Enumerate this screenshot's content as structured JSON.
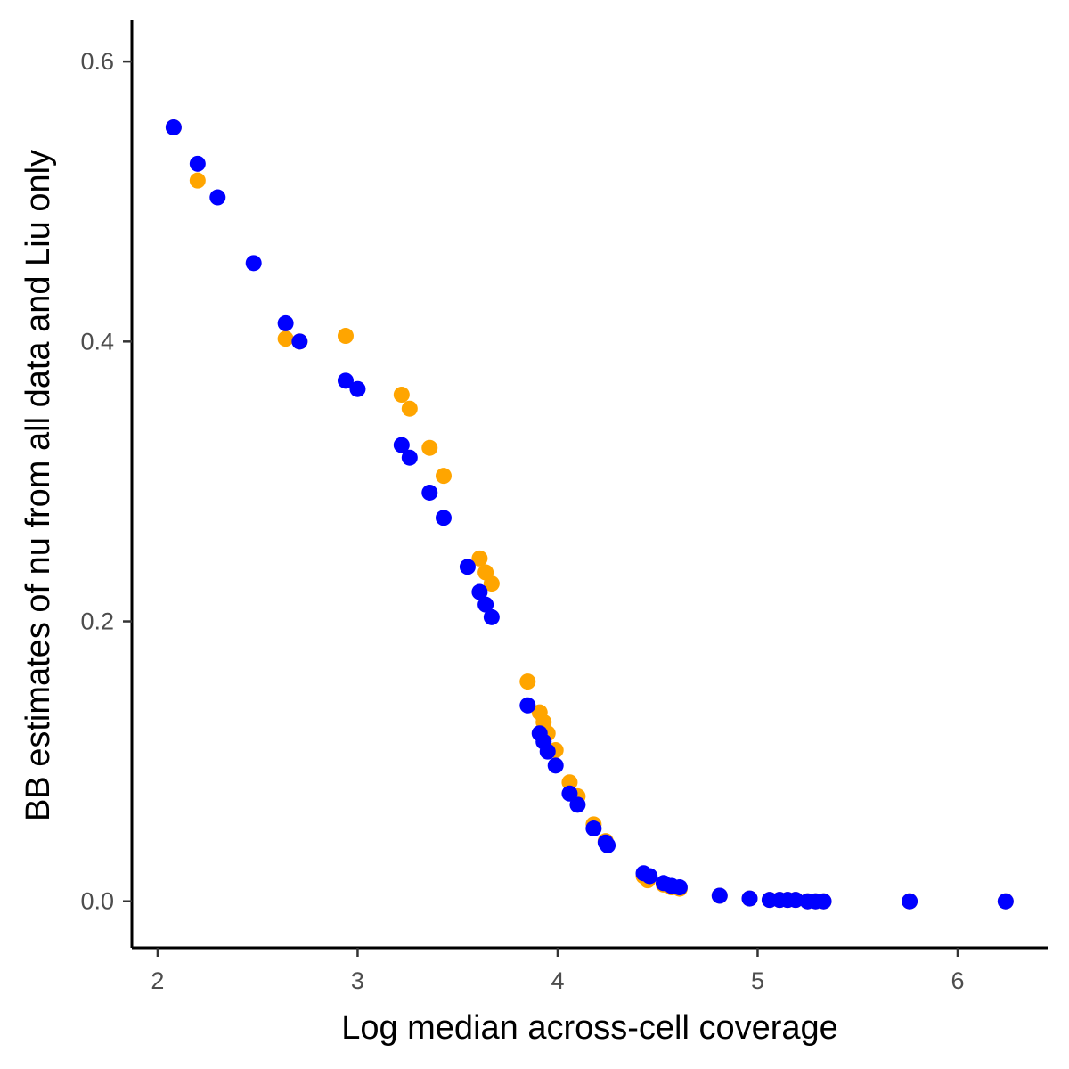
{
  "chart_data": {
    "type": "scatter",
    "title": "",
    "xlabel": "Log median across-cell coverage",
    "ylabel": "BB estimates of nu from all data and Liu only",
    "xlim": [
      1.88,
      6.45
    ],
    "ylim": [
      -0.032,
      0.63
    ],
    "x_ticks": [
      2,
      3,
      4,
      5,
      6
    ],
    "x_tick_labels": [
      "2",
      "3",
      "4",
      "5",
      "6"
    ],
    "y_ticks": [
      0.0,
      0.2,
      0.4,
      0.6
    ],
    "y_tick_labels": [
      "0.0",
      "0.2",
      "0.4",
      "0.6"
    ],
    "grid": false,
    "legend": "none",
    "series": [
      {
        "color": "#FFA500",
        "x": [
          2.08,
          2.2,
          2.64,
          2.71,
          2.94,
          3.22,
          3.26,
          3.36,
          3.43,
          3.61,
          3.64,
          3.67,
          3.85,
          3.91,
          3.93,
          3.95,
          3.99,
          4.06,
          4.1,
          4.18,
          4.24,
          4.43,
          4.45,
          4.53,
          4.57,
          4.61,
          4.81,
          4.96,
          5.06,
          5.11,
          5.15,
          5.19,
          5.25,
          5.29,
          5.33,
          5.76,
          6.24
        ],
        "y": [
          0.553,
          0.515,
          0.402,
          0.4,
          0.404,
          0.362,
          0.352,
          0.324,
          0.304,
          0.245,
          0.235,
          0.227,
          0.157,
          0.135,
          0.128,
          0.12,
          0.108,
          0.085,
          0.075,
          0.055,
          0.043,
          0.018,
          0.015,
          0.012,
          0.01,
          0.009,
          0.004,
          0.002,
          0.001,
          0.001,
          0.001,
          0.001,
          0.0,
          0.0,
          0.0,
          0.0,
          0.0
        ]
      },
      {
        "color": "#0000FF",
        "x": [
          2.08,
          2.2,
          2.3,
          2.48,
          2.64,
          2.71,
          2.94,
          3.0,
          3.22,
          3.26,
          3.36,
          3.43,
          3.55,
          3.61,
          3.64,
          3.67,
          3.85,
          3.91,
          3.93,
          3.95,
          3.99,
          4.06,
          4.1,
          4.18,
          4.24,
          4.25,
          4.43,
          4.46,
          4.53,
          4.57,
          4.61,
          4.81,
          4.96,
          5.06,
          5.11,
          5.15,
          5.19,
          5.25,
          5.29,
          5.33,
          5.76,
          6.24
        ],
        "y": [
          0.553,
          0.527,
          0.503,
          0.456,
          0.413,
          0.4,
          0.372,
          0.366,
          0.326,
          0.317,
          0.292,
          0.274,
          0.239,
          0.221,
          0.212,
          0.203,
          0.14,
          0.12,
          0.114,
          0.107,
          0.097,
          0.077,
          0.069,
          0.052,
          0.042,
          0.04,
          0.02,
          0.018,
          0.013,
          0.011,
          0.01,
          0.004,
          0.002,
          0.001,
          0.001,
          0.001,
          0.001,
          0.0,
          0.0,
          0.0,
          0.0,
          0.0
        ]
      }
    ]
  }
}
